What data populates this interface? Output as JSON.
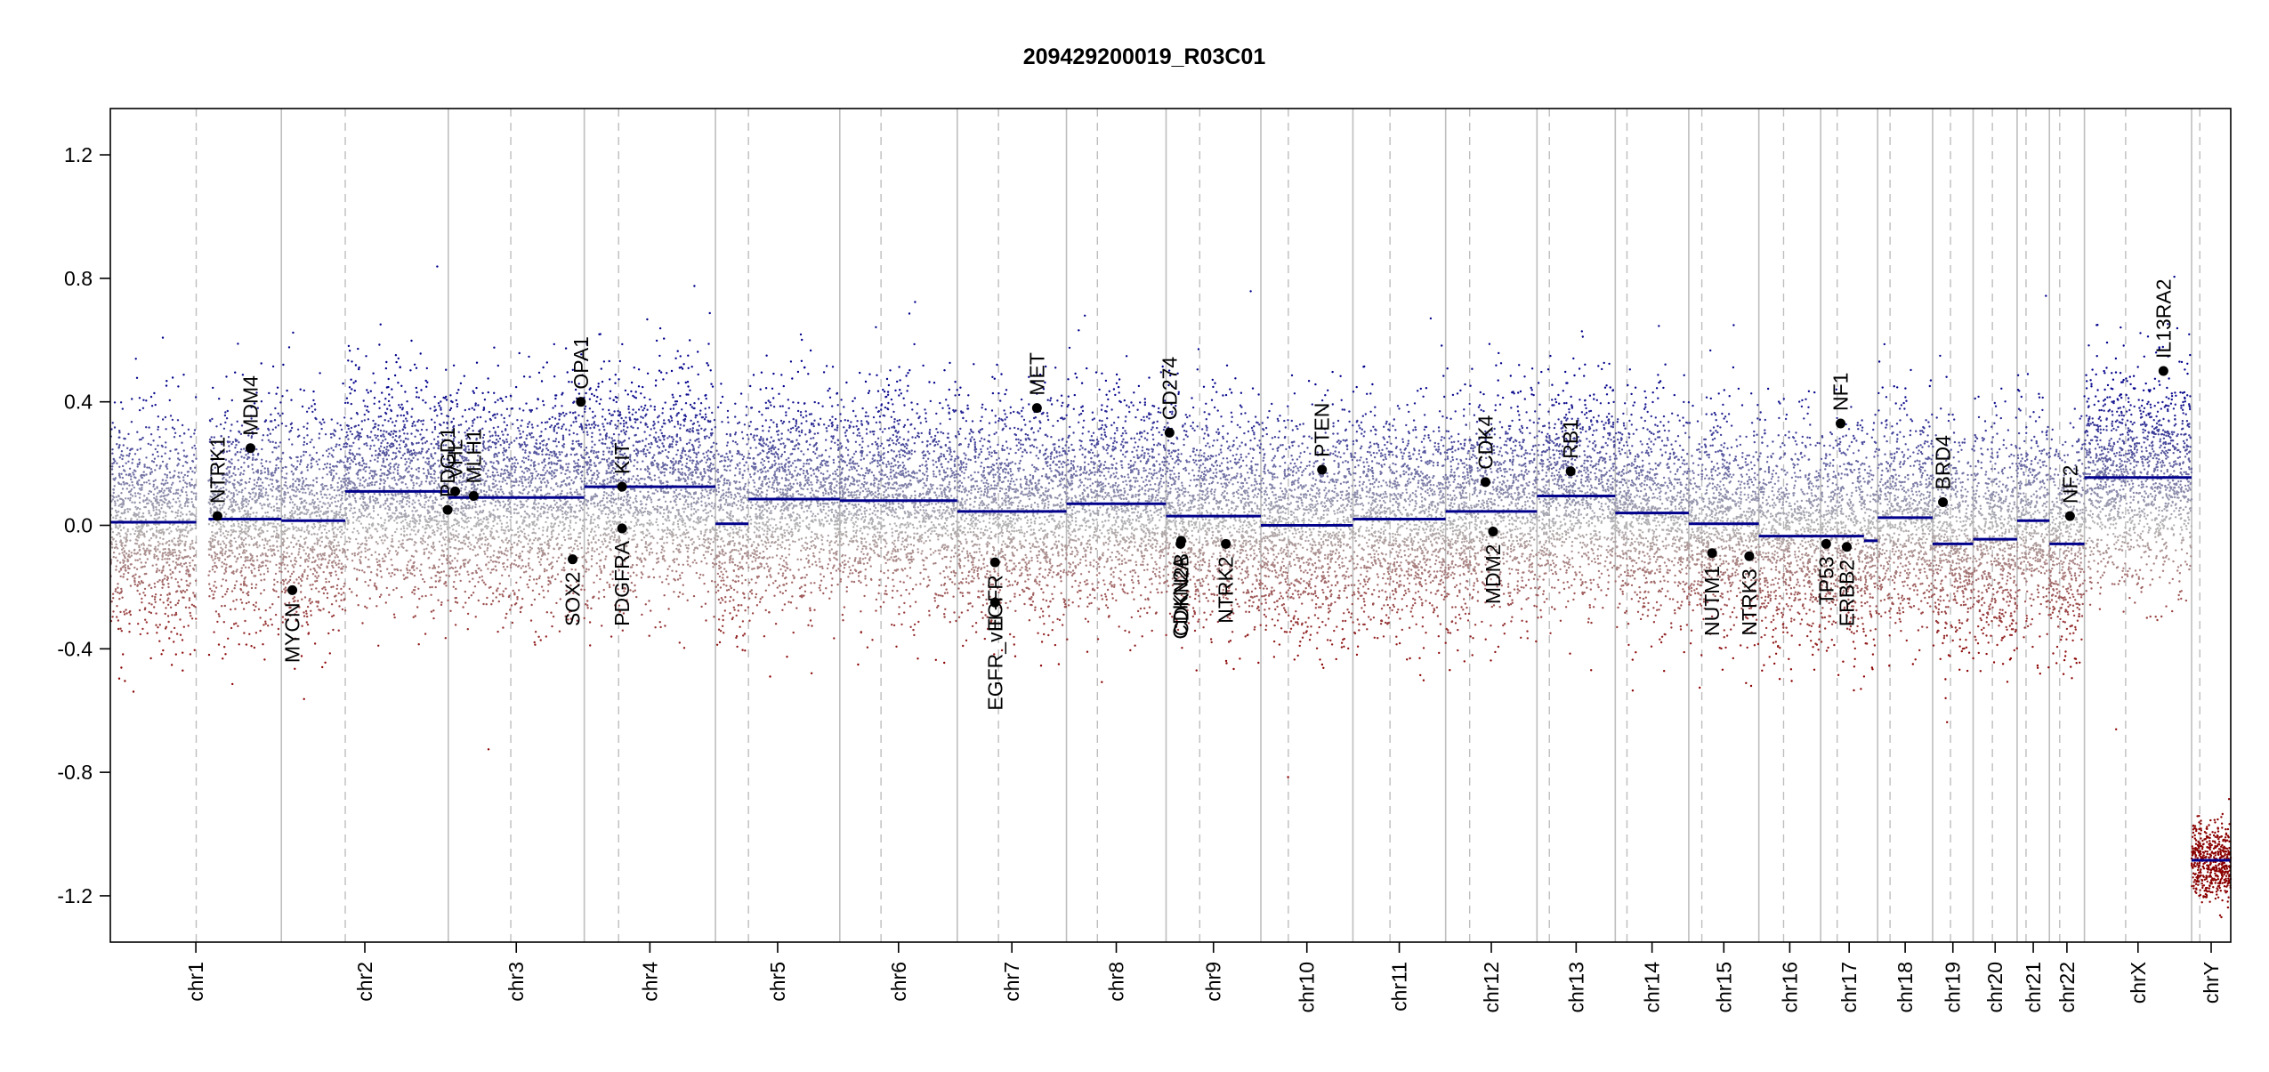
{
  "chart_data": {
    "type": "scatter",
    "title": "209429200019_R03C01",
    "xlabel": "",
    "ylabel": "",
    "ylim": [
      -1.35,
      1.35
    ],
    "y_ticks": [
      -1.2,
      -0.8,
      -0.4,
      0.0,
      0.4,
      0.8,
      1.2
    ],
    "y_tick_labels": [
      "-1.2",
      "-0.8",
      "-0.4",
      "0.0",
      "0.4",
      "0.8",
      "1.2"
    ],
    "grid": false,
    "colors": {
      "gain": "#00008b",
      "loss": "#8b0000",
      "neutral": "#b4b4b4",
      "segment": "#00008b",
      "gene_point": "#000000",
      "chrom_line": "#bebebe"
    },
    "chromosomes": [
      {
        "name": "chr1",
        "length": 249,
        "centromere": 125
      },
      {
        "name": "chr2",
        "length": 243,
        "centromere": 93
      },
      {
        "name": "chr3",
        "length": 198,
        "centromere": 91
      },
      {
        "name": "chr4",
        "length": 191,
        "centromere": 50
      },
      {
        "name": "chr5",
        "length": 181,
        "centromere": 48
      },
      {
        "name": "chr6",
        "length": 171,
        "centromere": 60
      },
      {
        "name": "chr7",
        "length": 159,
        "centromere": 60
      },
      {
        "name": "chr8",
        "length": 145,
        "centromere": 45
      },
      {
        "name": "chr9",
        "length": 138,
        "centromere": 49
      },
      {
        "name": "chr10",
        "length": 134,
        "centromere": 40
      },
      {
        "name": "chr11",
        "length": 135,
        "centromere": 54
      },
      {
        "name": "chr12",
        "length": 133,
        "centromere": 35
      },
      {
        "name": "chr13",
        "length": 114,
        "centromere": 18
      },
      {
        "name": "chr14",
        "length": 107,
        "centromere": 17
      },
      {
        "name": "chr15",
        "length": 102,
        "centromere": 19
      },
      {
        "name": "chr16",
        "length": 90,
        "centromere": 36
      },
      {
        "name": "chr17",
        "length": 83,
        "centromere": 24
      },
      {
        "name": "chr18",
        "length": 80,
        "centromere": 18
      },
      {
        "name": "chr19",
        "length": 59,
        "centromere": 26
      },
      {
        "name": "chr20",
        "length": 64,
        "centromere": 28
      },
      {
        "name": "chr21",
        "length": 47,
        "centromere": 13
      },
      {
        "name": "chr22",
        "length": 51,
        "centromere": 15
      },
      {
        "name": "chrX",
        "length": 156,
        "centromere": 60
      },
      {
        "name": "chrY",
        "length": 57,
        "centromere": 12
      }
    ],
    "segments": [
      {
        "chr": "chr1",
        "start": 0,
        "end": 125,
        "value": 0.01
      },
      {
        "chr": "chr1",
        "start": 143,
        "end": 249,
        "value": 0.02
      },
      {
        "chr": "chr2",
        "start": 0,
        "end": 93,
        "value": 0.015
      },
      {
        "chr": "chr2",
        "start": 93,
        "end": 243,
        "value": 0.11
      },
      {
        "chr": "chr3",
        "start": 0,
        "end": 198,
        "value": 0.09
      },
      {
        "chr": "chr4",
        "start": 0,
        "end": 191,
        "value": 0.125
      },
      {
        "chr": "chr5",
        "start": 0,
        "end": 48,
        "value": 0.005
      },
      {
        "chr": "chr5",
        "start": 48,
        "end": 181,
        "value": 0.085
      },
      {
        "chr": "chr6",
        "start": 0,
        "end": 171,
        "value": 0.08
      },
      {
        "chr": "chr7",
        "start": 0,
        "end": 159,
        "value": 0.045
      },
      {
        "chr": "chr8",
        "start": 0,
        "end": 145,
        "value": 0.07
      },
      {
        "chr": "chr9",
        "start": 0,
        "end": 138,
        "value": 0.03
      },
      {
        "chr": "chr10",
        "start": 0,
        "end": 134,
        "value": 0.0
      },
      {
        "chr": "chr11",
        "start": 0,
        "end": 135,
        "value": 0.02
      },
      {
        "chr": "chr12",
        "start": 0,
        "end": 133,
        "value": 0.045
      },
      {
        "chr": "chr13",
        "start": 0,
        "end": 114,
        "value": 0.095
      },
      {
        "chr": "chr14",
        "start": 0,
        "end": 107,
        "value": 0.04
      },
      {
        "chr": "chr15",
        "start": 0,
        "end": 102,
        "value": 0.005
      },
      {
        "chr": "chr16",
        "start": 0,
        "end": 90,
        "value": -0.035
      },
      {
        "chr": "chr17",
        "start": 0,
        "end": 63,
        "value": -0.035
      },
      {
        "chr": "chr17",
        "start": 63,
        "end": 83,
        "value": -0.05
      },
      {
        "chr": "chr18",
        "start": 0,
        "end": 80,
        "value": 0.025
      },
      {
        "chr": "chr19",
        "start": 0,
        "end": 59,
        "value": -0.06
      },
      {
        "chr": "chr20",
        "start": 0,
        "end": 64,
        "value": -0.045
      },
      {
        "chr": "chr21",
        "start": 0,
        "end": 47,
        "value": 0.015
      },
      {
        "chr": "chr22",
        "start": 0,
        "end": 51,
        "value": -0.06
      },
      {
        "chr": "chrX",
        "start": 0,
        "end": 156,
        "value": 0.155
      },
      {
        "chr": "chrY",
        "start": 0,
        "end": 57,
        "value": -1.085
      }
    ],
    "genes": [
      {
        "name": "NTRK1",
        "chr": "chr1",
        "pos": 156,
        "value": 0.03
      },
      {
        "name": "MDM4",
        "chr": "chr1",
        "pos": 204,
        "value": 0.25
      },
      {
        "name": "MYCN",
        "chr": "chr2",
        "pos": 16,
        "value": -0.21
      },
      {
        "name": "PDGD1",
        "chr": "chr2",
        "pos": 242,
        "value": 0.05
      },
      {
        "name": "VHL",
        "chr": "chr3",
        "pos": 10,
        "value": 0.11
      },
      {
        "name": "MLH1",
        "chr": "chr3",
        "pos": 37,
        "value": 0.095
      },
      {
        "name": "SOX2",
        "chr": "chr3",
        "pos": 181,
        "value": -0.11
      },
      {
        "name": "OPA1",
        "chr": "chr3",
        "pos": 193,
        "value": 0.4
      },
      {
        "name": "KIT",
        "chr": "chr4",
        "pos": 55,
        "value": 0.125
      },
      {
        "name": "PDGFRA",
        "chr": "chr4",
        "pos": 55,
        "value": -0.01
      },
      {
        "name": "EGFR_vIII",
        "chr": "chr7",
        "pos": 55,
        "value": -0.25
      },
      {
        "name": "EGFR",
        "chr": "chr7",
        "pos": 55,
        "value": -0.12
      },
      {
        "name": "MET",
        "chr": "chr7",
        "pos": 116,
        "value": 0.38
      },
      {
        "name": "CD274",
        "chr": "chr9",
        "pos": 5,
        "value": 0.3
      },
      {
        "name": "CDKN2A",
        "chr": "chr9",
        "pos": 21,
        "value": -0.06
      },
      {
        "name": "CDKN2B",
        "chr": "chr9",
        "pos": 22,
        "value": -0.05
      },
      {
        "name": "NTRK2",
        "chr": "chr9",
        "pos": 87,
        "value": -0.06
      },
      {
        "name": "PTEN",
        "chr": "chr10",
        "pos": 89,
        "value": 0.18
      },
      {
        "name": "CDK4",
        "chr": "chr12",
        "pos": 58,
        "value": 0.14
      },
      {
        "name": "MDM2",
        "chr": "chr12",
        "pos": 69,
        "value": -0.02
      },
      {
        "name": "RB1",
        "chr": "chr13",
        "pos": 49,
        "value": 0.175
      },
      {
        "name": "NUTM1",
        "chr": "chr15",
        "pos": 34,
        "value": -0.09
      },
      {
        "name": "NTRK3",
        "chr": "chr15",
        "pos": 88,
        "value": -0.1
      },
      {
        "name": "TP53",
        "chr": "chr17",
        "pos": 8,
        "value": -0.06
      },
      {
        "name": "NF1",
        "chr": "chr17",
        "pos": 29,
        "value": 0.33
      },
      {
        "name": "ERBB2",
        "chr": "chr17",
        "pos": 38,
        "value": -0.07
      },
      {
        "name": "BRD4",
        "chr": "chr19",
        "pos": 15,
        "value": 0.075
      },
      {
        "name": "NF2",
        "chr": "chr22",
        "pos": 30,
        "value": 0.03
      },
      {
        "name": "IL13RA2",
        "chr": "chrX",
        "pos": 115,
        "value": 0.5
      }
    ]
  }
}
